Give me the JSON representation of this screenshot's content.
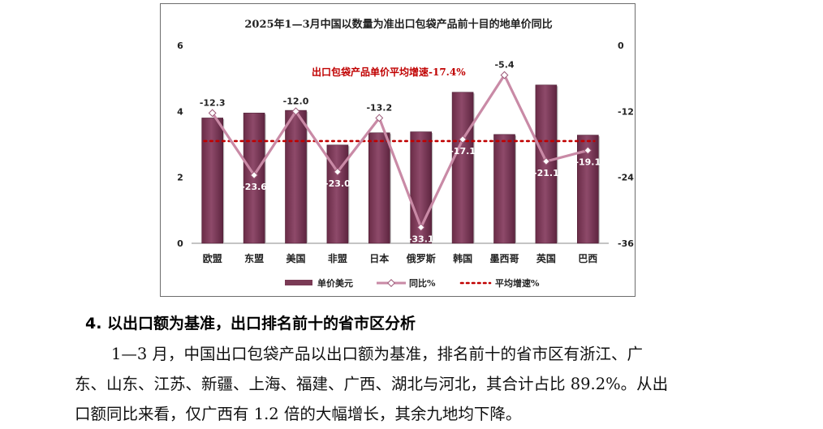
{
  "chart_data": {
    "type": "bar+line",
    "title": "2025年1—3月中国以数量为准出口包袋产品前十目的地单价同比",
    "categories": [
      "欧盟",
      "东盟",
      "美国",
      "非盟",
      "日本",
      "俄罗斯",
      "韩国",
      "墨西哥",
      "英国",
      "巴西"
    ],
    "series": [
      {
        "name": "单价美元",
        "type": "bar",
        "axis": "left",
        "color": "#7a3a55",
        "values": [
          3.8,
          3.95,
          4.03,
          2.98,
          3.35,
          3.38,
          4.58,
          3.3,
          4.8,
          3.28
        ]
      },
      {
        "name": "同比%",
        "type": "line",
        "axis": "right",
        "color": "#c98aa6",
        "values": [
          -12.3,
          -23.6,
          -12.0,
          -23.0,
          -13.2,
          -33.1,
          -17.1,
          -5.4,
          -21.1,
          -19.1
        ],
        "labels": [
          "-12.3",
          "-23.6",
          "-12.0",
          "-23.0",
          "-13.2",
          "-33.1",
          "-17.1",
          "-5.4",
          "-21.1",
          "-19.1"
        ]
      },
      {
        "name": "平均增速%",
        "type": "line",
        "axis": "right",
        "style": "dotted",
        "color": "#c00000",
        "value": -17.4
      }
    ],
    "left_axis": {
      "min": 0,
      "max": 6,
      "ticks": [
        "0",
        "2",
        "4",
        "6"
      ]
    },
    "right_axis": {
      "min": -36,
      "max": 0,
      "ticks": [
        "0",
        "-12",
        "-24",
        "-36"
      ]
    },
    "annotation": "出口包袋产品单价平均增速-17.4%",
    "grid": false,
    "legend_position": "bottom"
  },
  "section_heading": "4. 以出口额为基准，出口排名前十的省市区分析",
  "paragraph": {
    "line1": "1—3 月，中国出口包袋产品以出口额为基准，排名前十的省市区有浙江、广",
    "line2": "东、山东、江苏、新疆、上海、福建、广西、湖北与河北，其合计占比 89.2%。从出",
    "line3": "口额同比来看，仅广西有 1.2 倍的大幅增长，其余九地均下降。"
  }
}
